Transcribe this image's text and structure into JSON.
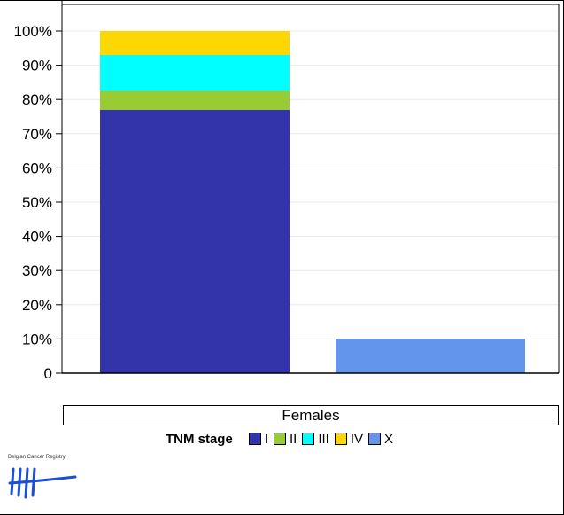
{
  "chart_data": {
    "type": "bar",
    "stacked": true,
    "categories": [
      "",
      ""
    ],
    "yticks": [
      "0",
      "10%",
      "20%",
      "30%",
      "40%",
      "50%",
      "60%",
      "70%",
      "80%",
      "90%",
      "100%"
    ],
    "ylim": [
      0,
      100
    ],
    "grid": true,
    "series": [
      {
        "name": "I",
        "color": "#3333aa",
        "values": [
          77,
          0
        ]
      },
      {
        "name": "II",
        "color": "#99cc33",
        "values": [
          5.5,
          0
        ]
      },
      {
        "name": "III",
        "color": "#00ffff",
        "values": [
          10.5,
          0
        ]
      },
      {
        "name": "IV",
        "color": "#ffd700",
        "values": [
          7,
          0
        ]
      },
      {
        "name": "X",
        "color": "#6495ed",
        "values": [
          0,
          10
        ]
      }
    ],
    "panel_label": "Females",
    "legend_title": "TNM stage",
    "legend_position": "bottom"
  },
  "logo": {
    "text": "Belgian Cancer Registry"
  }
}
